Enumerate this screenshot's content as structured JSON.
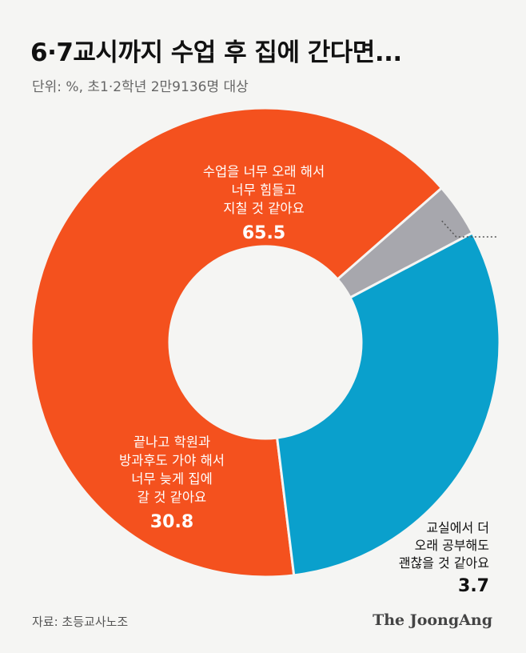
{
  "header": {
    "title": "6·7교시까지 수업 후 집에 간다면...",
    "subtitle": "단위: %, 초1·2학년 2만9136명 대상"
  },
  "footer": {
    "source": "자료: 초등교사노조",
    "brand": "The JoongAng"
  },
  "chart_data": {
    "type": "pie",
    "style": "donut",
    "title": "6·7교시까지 수업 후 집에 간다면...",
    "unit": "%",
    "slices": [
      {
        "label_lines": [
          "수업을 너무 오래 해서",
          "너무 힘들고",
          "지칠 것 같아요"
        ],
        "value": 65.5,
        "color": "#f4511e"
      },
      {
        "label_lines": [
          "교실에서 더",
          "오래 공부해도",
          "괜찮을 것 같아요"
        ],
        "value": 3.7,
        "color": "#a7a7ad"
      },
      {
        "label_lines": [
          "끝나고 학원과",
          "방과후도 가야 해서",
          "너무 늦게 집에",
          "갈 것 같아요"
        ],
        "value": 30.8,
        "color": "#0aa0cc"
      }
    ]
  }
}
